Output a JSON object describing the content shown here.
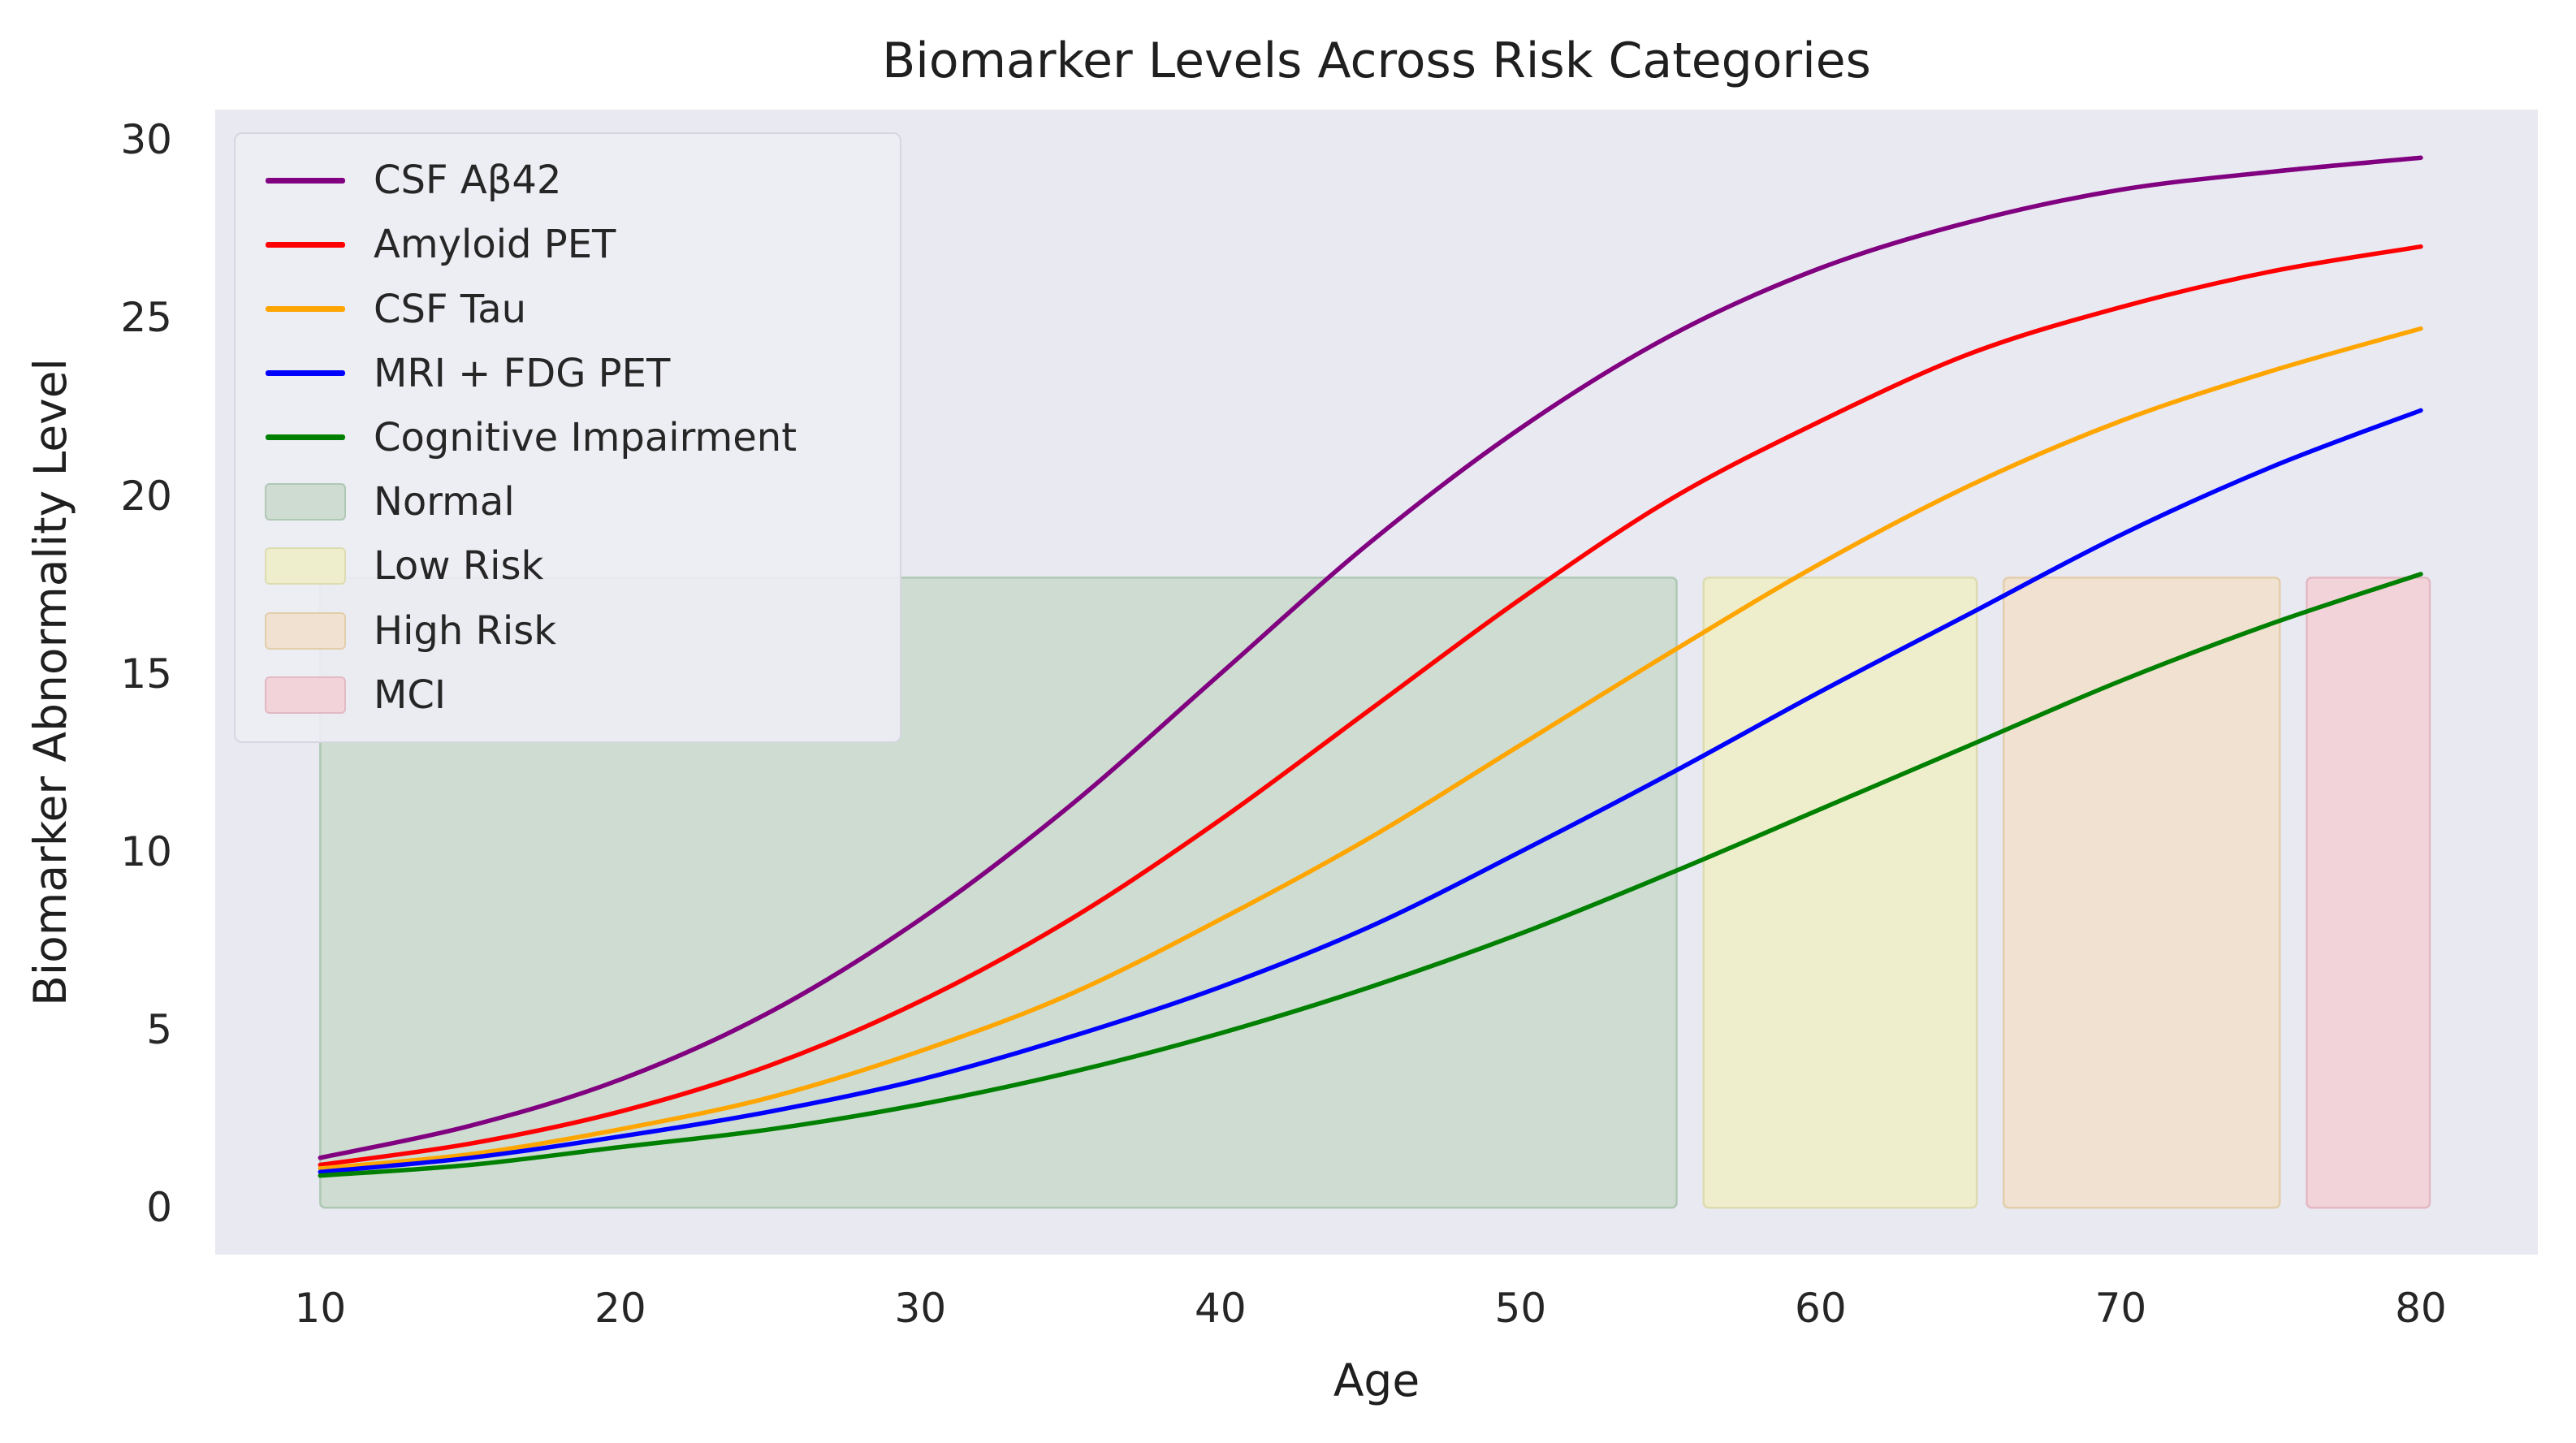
{
  "title": "Biomarker Levels Across Risk Categories",
  "chart_data": {
    "type": "line",
    "title": "Biomarker Levels Across Risk Categories",
    "xlabel": "Age",
    "ylabel": "Biomarker Abnormality Level",
    "x_ticks": [
      10,
      20,
      30,
      40,
      50,
      60,
      70,
      80
    ],
    "y_ticks": [
      0,
      5,
      10,
      15,
      20,
      25,
      30
    ],
    "xlim": [
      6.5,
      83.9
    ],
    "ylim": [
      -1.32,
      30.85
    ],
    "grid": false,
    "legend_position": "upper left",
    "colors": {
      "figure_background": "#ffffff",
      "axes_background": "#e9e9f2",
      "text": "#262626"
    },
    "x": [
      10,
      15,
      20,
      25,
      30,
      35,
      40,
      45,
      50,
      55,
      60,
      65,
      70,
      75,
      80
    ],
    "series": [
      {
        "name": "CSF Aβ42",
        "color": "#800080",
        "values": [
          1.4,
          2.3,
          3.6,
          5.5,
          8.1,
          11.3,
          15.0,
          18.7,
          21.9,
          24.5,
          26.4,
          27.7,
          28.6,
          29.1,
          29.5
        ]
      },
      {
        "name": "Amyloid PET",
        "color": "#ff0000",
        "values": [
          1.2,
          1.8,
          2.7,
          4.0,
          5.8,
          8.1,
          10.9,
          14.0,
          17.1,
          19.9,
          22.1,
          24.0,
          25.3,
          26.3,
          27.0
        ]
      },
      {
        "name": "CSF Tau",
        "color": "#ffa500",
        "values": [
          1.1,
          1.5,
          2.2,
          3.1,
          4.4,
          6.0,
          8.1,
          10.4,
          13.0,
          15.6,
          18.1,
          20.3,
          22.1,
          23.5,
          24.7
        ]
      },
      {
        "name": "MRI + FDG PET",
        "color": "#0000ff",
        "values": [
          1.0,
          1.4,
          2.0,
          2.7,
          3.6,
          4.8,
          6.2,
          7.9,
          10.0,
          12.2,
          14.5,
          16.7,
          18.9,
          20.8,
          22.4
        ]
      },
      {
        "name": "Cognitive Impairment",
        "color": "#008000",
        "values": [
          0.9,
          1.2,
          1.7,
          2.2,
          2.9,
          3.8,
          4.9,
          6.2,
          7.7,
          9.4,
          11.2,
          13.0,
          14.8,
          16.4,
          17.8
        ]
      }
    ],
    "bands": [
      {
        "label": "Normal",
        "x0": 10.0,
        "x1": 55.2,
        "y0": 0.0,
        "y1": 17.7,
        "fill": "#cedcd1",
        "edge": "#afc8b4"
      },
      {
        "label": "Low Risk",
        "x0": 56.1,
        "x1": 65.2,
        "y0": 0.0,
        "y1": 17.7,
        "fill": "#eeeecd",
        "edge": "#dddcb0"
      },
      {
        "label": "High Risk",
        "x0": 66.1,
        "x1": 75.3,
        "y0": 0.0,
        "y1": 17.7,
        "fill": "#f0e1d0",
        "edge": "#e3ceab"
      },
      {
        "label": "MCI",
        "x0": 76.2,
        "x1": 80.3,
        "y0": 0.0,
        "y1": 17.7,
        "fill": "#f2d3da",
        "edge": "#e3b9c3"
      }
    ]
  }
}
